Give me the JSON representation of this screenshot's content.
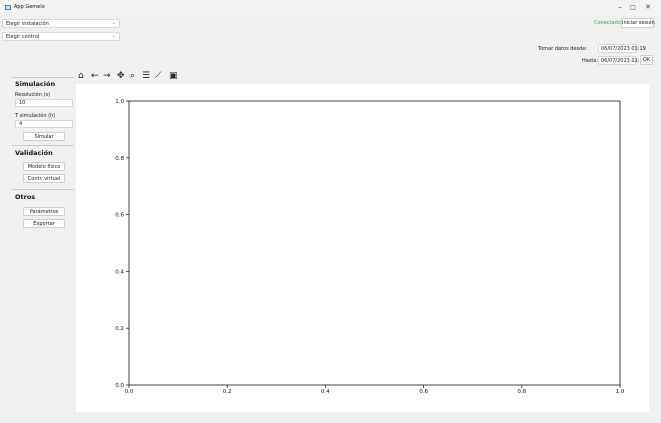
{
  "window": {
    "title": "App Gemelo",
    "minimize": "–",
    "maximize": "□",
    "close": "✕"
  },
  "header": {
    "installation_combo": "Elegir instalación",
    "control_combo": "Elegir control",
    "status": "Conectado",
    "login_button": "Iniciar sesión",
    "from_label": "Tomar datos desde:",
    "from_value": "06/07/2023 01:19",
    "to_label": "Hasta:",
    "to_value": "06/07/2023 11:19",
    "ok_button": "OK"
  },
  "sidebar": {
    "simulation": {
      "title": "Simulación",
      "resolution_label": "Resolución (s)",
      "resolution_value": "10",
      "time_label": "T simulación (h)",
      "time_value": "4",
      "simulate_button": "Simular"
    },
    "validation": {
      "title": "Validación",
      "physical_model_button": "Modelo físico",
      "virtual_control_button": "Contr. virtual"
    },
    "others": {
      "title": "Otros",
      "parameters_button": "Parámetros",
      "export_button": "Exportar"
    }
  },
  "toolbar": {
    "icons": [
      "home-icon",
      "back-arrow-icon",
      "forward-arrow-icon",
      "pan-icon",
      "zoom-icon",
      "configure-subplots-icon",
      "edit-axis-icon",
      "save-icon"
    ],
    "glyphs": [
      "⌂",
      "←",
      "→",
      "✥",
      "⌕",
      "☰",
      "⟋",
      "▣"
    ]
  },
  "chart_data": {
    "type": "line",
    "title": "",
    "xlabel": "",
    "ylabel": "",
    "xlim": [
      0.0,
      1.0
    ],
    "ylim": [
      0.0,
      1.0
    ],
    "x_ticks": [
      0.0,
      0.2,
      0.4,
      0.6,
      0.8,
      1.0
    ],
    "y_ticks": [
      0.0,
      0.2,
      0.4,
      0.6,
      0.8,
      1.0
    ],
    "x_tick_labels": [
      "0.0",
      "0.2",
      "0.4",
      "0.6",
      "0.8",
      "1.0"
    ],
    "y_tick_labels": [
      "0.0",
      "0.2",
      "0.4",
      "0.6",
      "0.8",
      "1.0"
    ],
    "grid": false,
    "series": []
  }
}
